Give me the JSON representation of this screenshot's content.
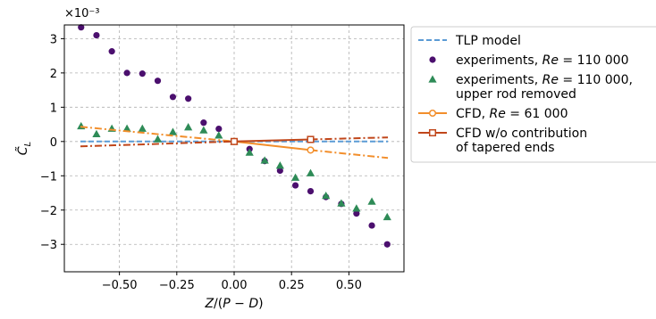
{
  "chart_data": {
    "type": "scatter",
    "title": "",
    "xlabel": "Z/(P − D)",
    "ylabel": "C̃_L",
    "y_multiplier_label": "×10⁻³",
    "xlim": [
      -0.74,
      0.74
    ],
    "ylim": [
      -3.8,
      3.4
    ],
    "x_ticks": [
      -0.5,
      -0.25,
      0.0,
      0.25,
      0.5
    ],
    "x_tick_labels": [
      "−0.50",
      "−0.25",
      "0.00",
      "0.25",
      "0.50"
    ],
    "y_ticks": [
      3,
      2,
      1,
      0,
      -1,
      -2,
      -3
    ],
    "y_tick_labels": [
      "3",
      "2",
      "1",
      "0",
      "−1",
      "−2",
      "−3"
    ],
    "grid": true,
    "legend_position": "outside-right",
    "series": [
      {
        "name": "TLP model",
        "kind": "line",
        "style": "dashed",
        "color": "#5b9bd5",
        "x": [
          -0.67,
          0.67
        ],
        "y": [
          0.0,
          0.0
        ]
      },
      {
        "name": "experiments, Re = 110 000",
        "kind": "scatter",
        "marker": "circle",
        "color": "#4b0f6e",
        "x": [
          -0.667,
          -0.6,
          -0.533,
          -0.467,
          -0.4,
          -0.333,
          -0.267,
          -0.2,
          -0.133,
          -0.067,
          0.0,
          0.067,
          0.133,
          0.2,
          0.267,
          0.333,
          0.4,
          0.467,
          0.533,
          0.6,
          0.667
        ],
        "y": [
          3.33,
          3.1,
          2.63,
          2.0,
          1.98,
          1.77,
          1.3,
          1.25,
          0.55,
          0.37,
          0.0,
          -0.22,
          -0.57,
          -0.85,
          -1.28,
          -1.45,
          -1.62,
          -1.82,
          -2.1,
          -2.45,
          -3.0
        ]
      },
      {
        "name": "experiments, Re = 110 000, upper rod removed",
        "kind": "scatter",
        "marker": "triangle",
        "color": "#2e8b57",
        "x": [
          -0.667,
          -0.6,
          -0.533,
          -0.467,
          -0.4,
          -0.333,
          -0.267,
          -0.2,
          -0.133,
          -0.067,
          0.0,
          0.067,
          0.133,
          0.2,
          0.267,
          0.333,
          0.4,
          0.467,
          0.533,
          0.6,
          0.667
        ],
        "y": [
          0.45,
          0.22,
          0.38,
          0.38,
          0.38,
          0.07,
          0.28,
          0.42,
          0.33,
          0.18,
          0.0,
          -0.32,
          -0.55,
          -0.7,
          -1.05,
          -0.92,
          -1.58,
          -1.8,
          -1.95,
          -1.75,
          -2.2
        ]
      },
      {
        "name": "CFD, Re = 61 000",
        "kind": "line",
        "style": "solid-then-dashdot",
        "marker": "open-circle",
        "color": "#f28e2b",
        "x": [
          -0.67,
          0.0,
          0.333,
          0.67
        ],
        "y": [
          0.43,
          0.0,
          -0.25,
          -0.48
        ],
        "marker_x": [
          0.0,
          0.333
        ],
        "marker_y": [
          0.0,
          -0.25
        ]
      },
      {
        "name": "CFD w/o contribution of tapered ends",
        "kind": "line",
        "style": "solid-then-dashdot",
        "marker": "open-square",
        "color": "#c0461a",
        "x": [
          -0.67,
          0.0,
          0.333,
          0.67
        ],
        "y": [
          -0.14,
          0.0,
          0.06,
          0.12
        ],
        "marker_x": [
          0.0,
          0.333
        ],
        "marker_y": [
          0.0,
          0.06
        ]
      }
    ]
  },
  "legend": [
    {
      "label": "TLP model",
      "label_line2": ""
    },
    {
      "label": "experiments, ",
      "italic": "Re",
      "rest": " = 110 000",
      "label_line2": ""
    },
    {
      "label": "experiments, ",
      "italic": "Re",
      "rest": " = 110 000,",
      "label_line2": "upper rod removed"
    },
    {
      "label": "CFD, ",
      "italic": "Re",
      "rest": " = 61 000",
      "label_line2": ""
    },
    {
      "label": "CFD w/o contribution",
      "label_line2": "of tapered ends"
    }
  ]
}
